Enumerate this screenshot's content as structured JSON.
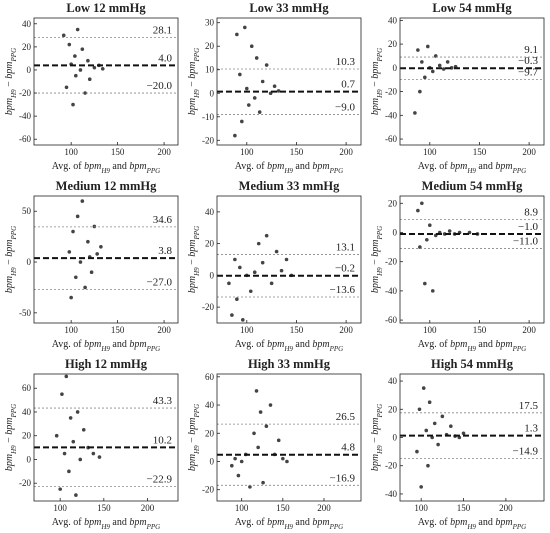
{
  "chart_data": [
    {
      "type": "scatter",
      "title": "Low 12  mmHg",
      "xlabel": [
        "Avg. of ",
        "bpm",
        "H9",
        " and ",
        "bpm",
        "PPG"
      ],
      "ylabel": [
        "bpm",
        "H9",
        " − ",
        "bpm",
        "PPG"
      ],
      "xlim": [
        60,
        215
      ],
      "xticks": [
        100,
        150,
        200
      ],
      "ylim": [
        -65,
        45
      ],
      "yticks": [
        -60,
        -40,
        -20,
        0,
        20,
        40
      ],
      "color": "#444444",
      "x": [
        92,
        95,
        98,
        100,
        102,
        104,
        105,
        107,
        110,
        112,
        115,
        118,
        120,
        125,
        130,
        134
      ],
      "values": [
        30,
        -15,
        22,
        5,
        -30,
        12,
        -5,
        35,
        0,
        18,
        -20,
        8,
        -8,
        2,
        4,
        1
      ],
      "hlines": [
        28.1,
        4.0,
        -20.0
      ],
      "hline_labels": [
        "28.1",
        "4.0",
        "−20.0"
      ]
    },
    {
      "type": "scatter",
      "title": "Low 33  mmHg",
      "xlabel": [
        "Avg. of ",
        "bpm",
        "H9",
        " and ",
        "bpm",
        "PPG"
      ],
      "ylabel": [
        "bpm",
        "H9",
        " − ",
        "bpm",
        "PPG"
      ],
      "xlim": [
        70,
        215
      ],
      "xticks": [
        100,
        150,
        200
      ],
      "ylim": [
        -22,
        32
      ],
      "yticks": [
        -20,
        -10,
        0,
        10,
        20,
        30
      ],
      "color": "#444444",
      "x": [
        88,
        90,
        93,
        95,
        98,
        100,
        102,
        105,
        108,
        110,
        113,
        116,
        120,
        124,
        128,
        132
      ],
      "values": [
        -18,
        25,
        8,
        -12,
        28,
        2,
        -5,
        20,
        -2,
        15,
        -8,
        5,
        12,
        0,
        3,
        1
      ],
      "hlines": [
        10.3,
        0.7,
        -9.0
      ],
      "hline_labels": [
        "10.3",
        "0.7",
        "−9.0"
      ]
    },
    {
      "type": "scatter",
      "title": "Low 54  mmHg",
      "xlabel": [
        "Avg. of ",
        "bpm",
        "H9",
        " and ",
        "bpm",
        "PPG"
      ],
      "ylabel": [
        "bpm",
        "H9",
        " − ",
        "bpm",
        "PPG"
      ],
      "xlim": [
        70,
        215
      ],
      "xticks": [
        100,
        150,
        200
      ],
      "ylim": [
        -65,
        42
      ],
      "yticks": [
        -60,
        -40,
        -20,
        0,
        20,
        40
      ],
      "color": "#444444",
      "x": [
        85,
        88,
        90,
        92,
        95,
        98,
        100,
        103,
        106,
        110,
        114,
        118,
        122,
        126
      ],
      "values": [
        -38,
        15,
        -20,
        5,
        -8,
        18,
        0,
        -3,
        10,
        2,
        -1,
        5,
        0,
        1
      ],
      "hlines": [
        9.1,
        -0.3,
        -9.7
      ],
      "hline_labels": [
        "9.1",
        "−0.3",
        "−9.7"
      ]
    },
    {
      "type": "scatter",
      "title": "Medium 12  mmHg",
      "xlabel": [
        "Avg. of ",
        "bpm",
        "H9",
        " and ",
        "bpm",
        "PPG"
      ],
      "ylabel": [
        "bpm",
        "H9",
        " − ",
        "bpm",
        "PPG"
      ],
      "xlim": [
        60,
        215
      ],
      "xticks": [
        100,
        150,
        200
      ],
      "ylim": [
        -60,
        65
      ],
      "yticks": [
        -50,
        0,
        50
      ],
      "color": "#444444",
      "x": [
        98,
        100,
        102,
        105,
        107,
        110,
        112,
        115,
        118,
        120,
        122,
        125,
        128,
        132
      ],
      "values": [
        10,
        -35,
        30,
        -15,
        45,
        0,
        60,
        -25,
        20,
        5,
        -10,
        35,
        8,
        15
      ],
      "hlines": [
        34.6,
        3.8,
        -27.0
      ],
      "hline_labels": [
        "34.6",
        "3.8",
        "−27.0"
      ]
    },
    {
      "type": "scatter",
      "title": "Medium 33  mmHg",
      "xlabel": [
        "Avg. of ",
        "bpm",
        "H9",
        " and ",
        "bpm",
        "PPG"
      ],
      "ylabel": [
        "bpm",
        "H9",
        " − ",
        "bpm",
        "PPG"
      ],
      "xlim": [
        70,
        215
      ],
      "xticks": [
        100,
        150,
        200
      ],
      "ylim": [
        -30,
        50
      ],
      "yticks": [
        -20,
        0,
        20,
        40
      ],
      "color": "#444444",
      "x": [
        82,
        85,
        88,
        90,
        93,
        96,
        100,
        104,
        108,
        112,
        116,
        120,
        125,
        130,
        135,
        140,
        145
      ],
      "values": [
        -5,
        -25,
        10,
        -15,
        5,
        -28,
        0,
        -10,
        2,
        20,
        8,
        25,
        -5,
        15,
        3,
        10,
        0
      ],
      "hlines": [
        13.1,
        -0.2,
        -13.6
      ],
      "hline_labels": [
        "13.1",
        "−0.2",
        "−13.6"
      ]
    },
    {
      "type": "scatter",
      "title": "Medium 54  mmHg",
      "xlabel": [
        "Avg. of ",
        "bpm",
        "H9",
        " and ",
        "bpm",
        "PPG"
      ],
      "ylabel": [
        "bpm",
        "H9",
        " − ",
        "bpm",
        "PPG"
      ],
      "xlim": [
        70,
        215
      ],
      "xticks": [
        100,
        150,
        200
      ],
      "ylim": [
        -62,
        25
      ],
      "yticks": [
        -60,
        -40,
        -20,
        0,
        20
      ],
      "color": "#444444",
      "x": [
        88,
        90,
        92,
        95,
        97,
        100,
        103,
        106,
        110,
        115,
        120,
        125,
        130,
        140,
        148
      ],
      "values": [
        15,
        -10,
        20,
        -35,
        -5,
        5,
        -40,
        -2,
        0,
        -1,
        1,
        -1,
        0,
        0,
        -1
      ],
      "hlines": [
        8.9,
        -1.0,
        -11.0
      ],
      "hline_labels": [
        "8.9",
        "−1.0",
        "−11.0"
      ]
    },
    {
      "type": "scatter",
      "title": "High 12  mmHg",
      "xlabel": [
        "Avg. of ",
        "bpm",
        "H9",
        " and ",
        "bpm",
        "PPG"
      ],
      "ylabel": [
        "bpm",
        "H9",
        " − ",
        "bpm",
        "PPG"
      ],
      "xlim": [
        70,
        235
      ],
      "xticks": [
        100,
        150,
        200
      ],
      "ylim": [
        -35,
        72
      ],
      "yticks": [
        -20,
        0,
        20,
        40,
        60
      ],
      "color": "#444444",
      "x": [
        96,
        100,
        102,
        105,
        107,
        110,
        112,
        115,
        118,
        120,
        123,
        127,
        132,
        138,
        145
      ],
      "values": [
        20,
        -25,
        55,
        5,
        70,
        -10,
        35,
        15,
        -30,
        40,
        0,
        25,
        10,
        5,
        2
      ],
      "hlines": [
        43.3,
        10.2,
        -22.9
      ],
      "hline_labels": [
        "43.3",
        "10.2",
        "−22.9"
      ]
    },
    {
      "type": "scatter",
      "title": "High 33  mmHg",
      "xlabel": [
        "Avg. of ",
        "bpm",
        "H9",
        " and ",
        "bpm",
        "PPG"
      ],
      "ylabel": [
        "bpm",
        "H9",
        " − ",
        "bpm",
        "PPG"
      ],
      "xlim": [
        70,
        245
      ],
      "xticks": [
        100,
        150,
        200
      ],
      "ylim": [
        -28,
        62
      ],
      "yticks": [
        -20,
        0,
        20,
        40,
        60
      ],
      "color": "#444444",
      "x": [
        88,
        92,
        96,
        100,
        105,
        110,
        115,
        118,
        120,
        123,
        126,
        130,
        135,
        140,
        145,
        150,
        155
      ],
      "values": [
        -3,
        2,
        -10,
        0,
        5,
        -18,
        20,
        50,
        10,
        35,
        -15,
        25,
        40,
        5,
        15,
        2,
        0
      ],
      "hlines": [
        26.5,
        4.8,
        -16.9
      ],
      "hline_labels": [
        "26.5",
        "4.8",
        "−16.9"
      ]
    },
    {
      "type": "scatter",
      "title": "High 54  mmHg",
      "xlabel": [
        "Avg. of ",
        "bpm",
        "H9",
        " and ",
        "bpm",
        "PPG"
      ],
      "ylabel": [
        "bpm",
        "H9",
        " − ",
        "bpm",
        "PPG"
      ],
      "xlim": [
        75,
        245
      ],
      "xticks": [
        100,
        150,
        200
      ],
      "ylim": [
        -45,
        45
      ],
      "yticks": [
        -40,
        -20,
        0,
        20,
        40
      ],
      "color": "#444444",
      "x": [
        95,
        98,
        100,
        103,
        106,
        108,
        110,
        113,
        116,
        120,
        125,
        130,
        135,
        140,
        145,
        150
      ],
      "values": [
        -10,
        20,
        -35,
        35,
        5,
        -20,
        25,
        0,
        10,
        -5,
        15,
        2,
        8,
        1,
        0,
        3
      ],
      "hlines": [
        17.5,
        1.3,
        -14.9
      ],
      "hline_labels": [
        "17.5",
        "1.3",
        "−14.9"
      ]
    }
  ]
}
